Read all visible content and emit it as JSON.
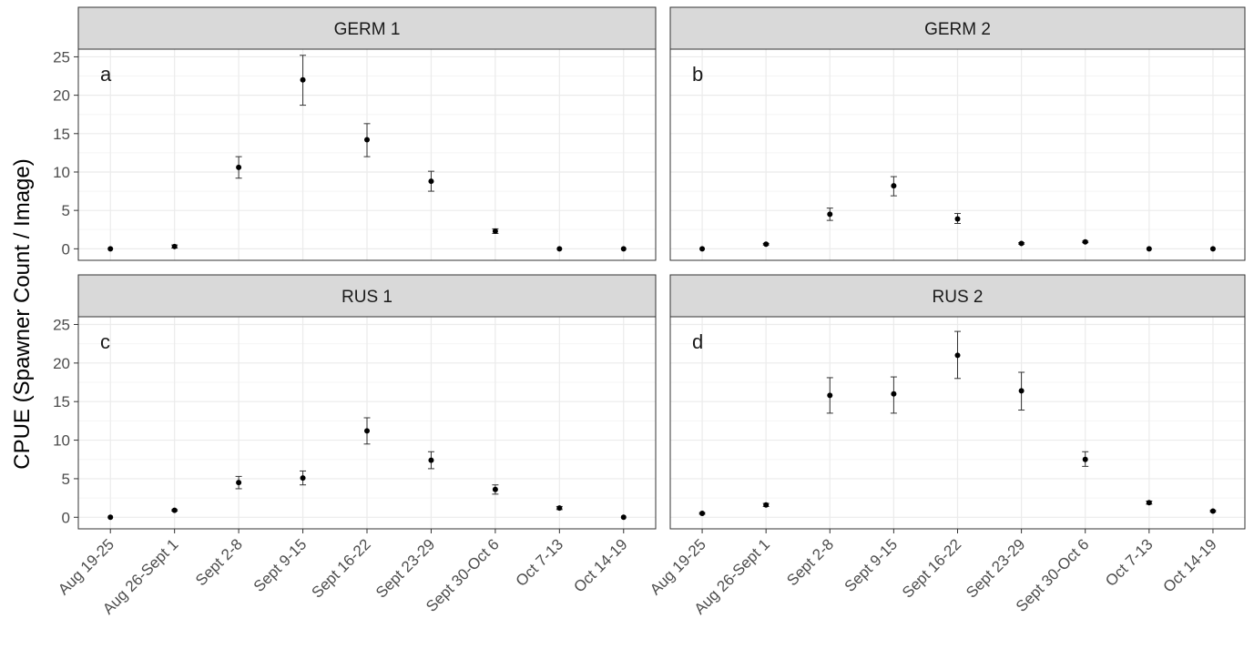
{
  "chart_data": {
    "type": "scatter",
    "ylabel": "CPUE (Spawner Count / Image)",
    "xlabel": "",
    "categories": [
      "Aug 19-25",
      "Aug 26-Sept 1",
      "Sept 2-8",
      "Sept 9-15",
      "Sept 16-22",
      "Sept 23-29",
      "Sept 30-Oct 6",
      "Oct 7-13",
      "Oct 14-19"
    ],
    "ylim": [
      -1.5,
      26
    ],
    "yticks": [
      0,
      5,
      10,
      15,
      20,
      25
    ],
    "grid": true,
    "error_bars": true,
    "panels": [
      {
        "title": "GERM 1",
        "tag": "a",
        "values": [
          0,
          0.3,
          10.6,
          22.0,
          14.2,
          8.8,
          2.3,
          0,
          0
        ],
        "err_low": [
          0,
          0.1,
          9.2,
          18.7,
          12.0,
          7.5,
          2.0,
          0,
          0
        ],
        "err_high": [
          0,
          0.5,
          12.0,
          25.2,
          16.3,
          10.1,
          2.6,
          0,
          0
        ]
      },
      {
        "title": "GERM 2",
        "tag": "b",
        "values": [
          0,
          0.6,
          4.5,
          8.2,
          3.9,
          0.7,
          0.9,
          0,
          0
        ],
        "err_low": [
          0,
          0.5,
          3.7,
          6.9,
          3.3,
          0.6,
          0.8,
          0,
          0
        ],
        "err_high": [
          0,
          0.7,
          5.3,
          9.4,
          4.6,
          0.8,
          1.0,
          0,
          0
        ]
      },
      {
        "title": "RUS 1",
        "tag": "c",
        "values": [
          0,
          0.9,
          4.5,
          5.1,
          11.2,
          7.4,
          3.6,
          1.2,
          0
        ],
        "err_low": [
          0,
          0.8,
          3.7,
          4.2,
          9.5,
          6.3,
          3.0,
          1.0,
          0
        ],
        "err_high": [
          0,
          1.0,
          5.3,
          6.0,
          12.9,
          8.5,
          4.2,
          1.4,
          0
        ]
      },
      {
        "title": "RUS 2",
        "tag": "d",
        "values": [
          0.5,
          1.6,
          15.8,
          16.0,
          21.0,
          16.4,
          7.5,
          1.9,
          0.8
        ],
        "err_low": [
          0.4,
          1.4,
          13.5,
          13.5,
          18.0,
          13.9,
          6.6,
          1.7,
          0.7
        ],
        "err_high": [
          0.6,
          1.8,
          18.1,
          18.2,
          24.1,
          18.8,
          8.5,
          2.1,
          0.9
        ]
      }
    ]
  },
  "colors": {
    "strip_fill": "#d9d9d9",
    "panel_border": "#333333",
    "grid_major": "#ebebeb",
    "grid_minor": "#f5f5f5",
    "point": "#000000",
    "text": "#1a1a1a",
    "axis_text": "#4d4d4d"
  }
}
